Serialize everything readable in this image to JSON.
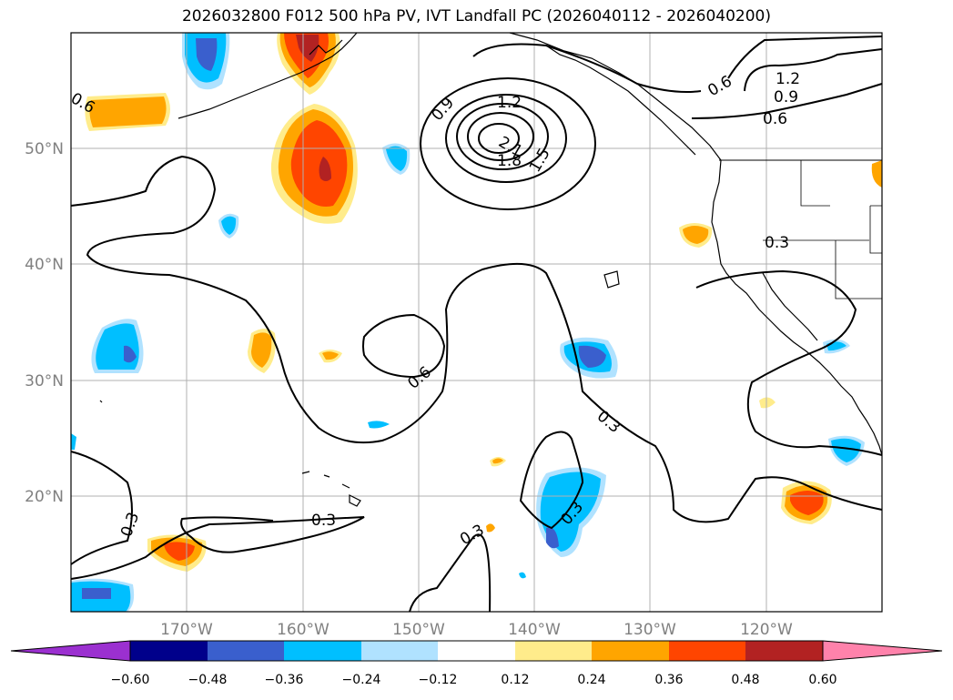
{
  "title": "2026032800 F012 500 hPa PV, IVT Landfall PC (2026040112 - 2026040200)",
  "lat_labels": [
    "50°N",
    "40°N",
    "30°N",
    "20°N"
  ],
  "lon_labels": [
    "170°W",
    "160°W",
    "150°W",
    "140°W",
    "130°W",
    "120°W"
  ],
  "contour_labels": [
    "0.6",
    "0.9",
    "1.2",
    "1.5",
    "1.8",
    "2.1",
    "0.6",
    "1.2",
    "0.9",
    "0.6",
    "0.3",
    "0.6",
    "0.3",
    "0.3",
    "0.3",
    "0.3",
    "0.3",
    "0.3"
  ],
  "colorbar": {
    "ticks": [
      "−0.60",
      "−0.48",
      "−0.36",
      "−0.24",
      "−0.12",
      "0.12",
      "0.24",
      "0.36",
      "0.48",
      "0.60"
    ],
    "colors": [
      "#9b30d0",
      "#00008b",
      "#3a5fcd",
      "#00bfff",
      "#b0e2ff",
      "#ffffff",
      "#ffec8b",
      "#ffa500",
      "#ff4500",
      "#b22222",
      "#ff82ab"
    ]
  }
}
